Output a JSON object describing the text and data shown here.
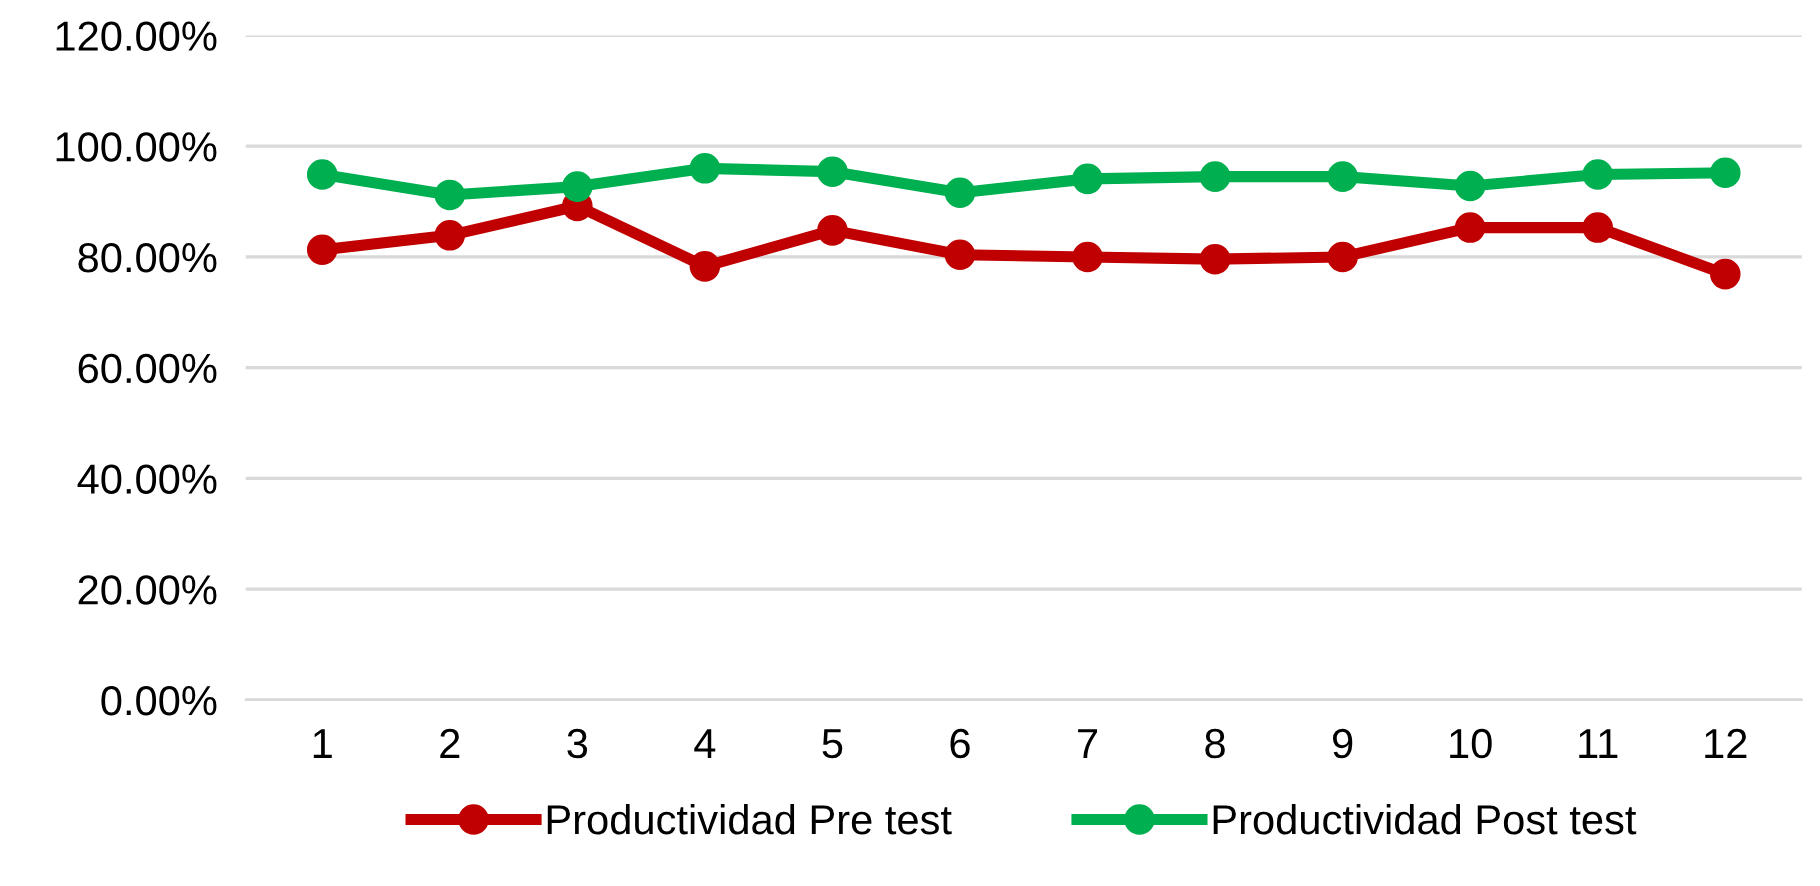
{
  "chart_data": {
    "type": "line",
    "categories": [
      "1",
      "2",
      "3",
      "4",
      "5",
      "6",
      "7",
      "8",
      "9",
      "10",
      "11",
      "12"
    ],
    "series": [
      {
        "name": "Productividad Pre test",
        "color": "#c00000",
        "values": [
          81.3,
          83.9,
          89.2,
          78.3,
          84.8,
          80.4,
          80.0,
          79.6,
          80.0,
          85.3,
          85.3,
          76.9
        ]
      },
      {
        "name": "Productividad Post test",
        "color": "#00b050",
        "values": [
          94.9,
          91.2,
          92.7,
          96.0,
          95.4,
          91.6,
          94.1,
          94.5,
          94.5,
          92.8,
          94.9,
          95.2
        ]
      }
    ],
    "ylim": [
      0,
      120
    ],
    "yticks": [
      {
        "value": 0,
        "label": "0.00%"
      },
      {
        "value": 20,
        "label": "20.00%"
      },
      {
        "value": 40,
        "label": "40.00%"
      },
      {
        "value": 60,
        "label": "60.00%"
      },
      {
        "value": 80,
        "label": "80.00%"
      },
      {
        "value": 100,
        "label": "100.00%"
      },
      {
        "value": 120,
        "label": "120.00%"
      }
    ],
    "grid": "y",
    "legend": "bottom",
    "marker": "circle",
    "line_style": "solid"
  }
}
